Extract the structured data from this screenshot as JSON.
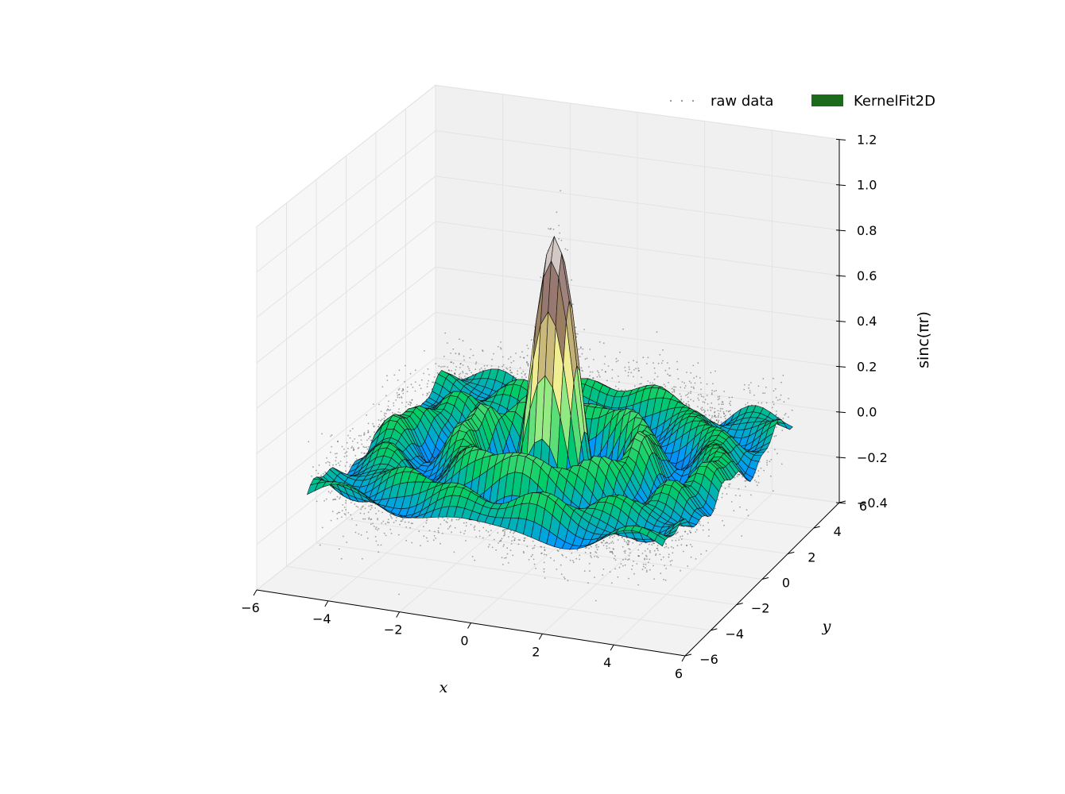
{
  "chart_data": {
    "type": "surface3d",
    "title": "",
    "xlabel": "x",
    "ylabel": "y",
    "zlabel": "sinc(πr)",
    "xlim": [
      -6,
      6
    ],
    "ylim": [
      -6,
      6
    ],
    "zlim": [
      -0.4,
      1.2
    ],
    "x_ticks": [
      -6,
      -4,
      -2,
      0,
      2,
      4,
      6
    ],
    "y_ticks": [
      -6,
      -4,
      -2,
      0,
      2,
      4,
      6
    ],
    "z_ticks": [
      -0.4,
      -0.2,
      0.0,
      0.2,
      0.4,
      0.6,
      0.8,
      1.0,
      1.2
    ],
    "x_tick_labels": [
      "−6",
      "−4",
      "−2",
      "0",
      "2",
      "4",
      "6"
    ],
    "y_tick_labels": [
      "−6",
      "−4",
      "−2",
      "0",
      "2",
      "4",
      "6"
    ],
    "z_tick_labels": [
      "−0.4",
      "−0.2",
      "0.0",
      "0.2",
      "0.4",
      "0.6",
      "0.8",
      "1.0",
      "1.2"
    ],
    "grid": true,
    "legend_position": "top-right",
    "series": [
      {
        "name": "raw data",
        "kind": "scatter",
        "color": "#444444",
        "x_range": [
          -5,
          5
        ],
        "y_range": [
          -5,
          5
        ],
        "model": "sinc(pi*r) + noise",
        "noise_sd": 0.1
      },
      {
        "name": "KernelFit2D",
        "kind": "surface",
        "color": "#1a6b1a",
        "x_range": [
          -5,
          5
        ],
        "y_range": [
          -5,
          5
        ],
        "model": "sinc(pi*r)",
        "peak": 0.95,
        "colormap": "terrain"
      }
    ],
    "legend": {
      "raw_data_label": "raw data",
      "fit_label": "KernelFit2D",
      "fit_color": "#1a6b1a"
    }
  }
}
